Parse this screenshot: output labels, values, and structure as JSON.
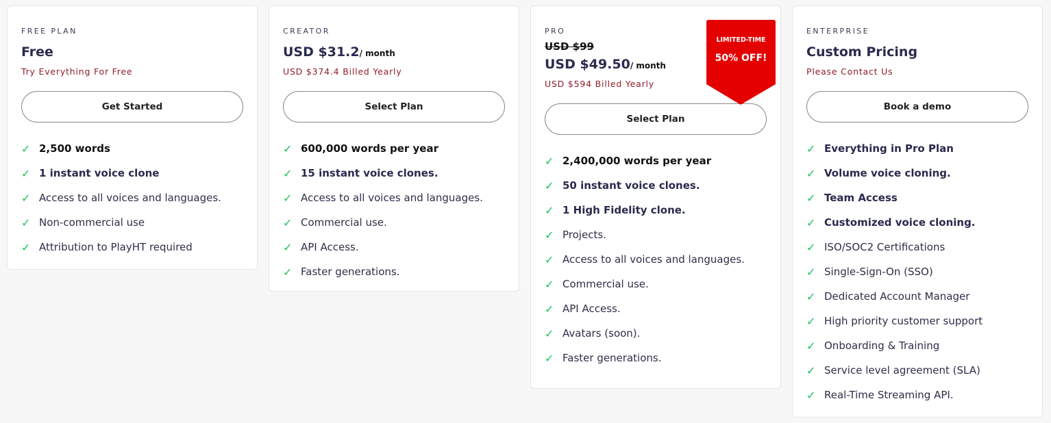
{
  "colors": {
    "accent_check": "#16c45a",
    "subtitle": "#8e1c2b",
    "badge": "#e50000",
    "title": "#2a2a4e"
  },
  "plans": [
    {
      "tier": "FREE PLAN",
      "price": "Free",
      "per": "",
      "old_price": "",
      "subtitle": "Try Everything For Free",
      "button": "Get Started",
      "features": [
        {
          "text": "2,500 words",
          "bold": true,
          "dark": true
        },
        {
          "text": "1 instant voice clone",
          "bold": true
        },
        {
          "text": "Access to all voices and languages."
        },
        {
          "text": "Non-commercial use"
        },
        {
          "text": "Attribution to PlayHT required"
        }
      ]
    },
    {
      "tier": "CREATOR",
      "price": "USD $31.2",
      "per": "/ month",
      "old_price": "",
      "subtitle": "USD $374.4 Billed Yearly",
      "button": "Select Plan",
      "features": [
        {
          "text": "600,000 words per year",
          "bold": true,
          "dark": true
        },
        {
          "text": "15 instant voice clones.",
          "bold": true
        },
        {
          "text": "Access to all voices and languages."
        },
        {
          "text": "Commercial use."
        },
        {
          "text": "API Access."
        },
        {
          "text": "Faster generations."
        }
      ]
    },
    {
      "tier": "PRO",
      "price": "USD $49.50",
      "per": "/ month",
      "old_price": "USD $99",
      "subtitle": "USD $594 Billed Yearly",
      "button": "Select Plan",
      "badge": {
        "line1": "LIMITED-TIME",
        "line2": "50% OFF!"
      },
      "features": [
        {
          "text": "2,400,000 words per year",
          "bold": true,
          "dark": true
        },
        {
          "text": "50 instant voice clones.",
          "bold": true
        },
        {
          "text": "1 High Fidelity clone.",
          "bold": true
        },
        {
          "text": "Projects."
        },
        {
          "text": "Access to all voices and languages."
        },
        {
          "text": "Commercial use."
        },
        {
          "text": "API Access."
        },
        {
          "text": "Avatars (soon)."
        },
        {
          "text": "Faster generations."
        }
      ]
    },
    {
      "tier": "ENTERPRISE",
      "price": "Custom Pricing",
      "per": "",
      "old_price": "",
      "subtitle": "Please Contact Us",
      "button": "Book a demo",
      "features": [
        {
          "text": "Everything in Pro Plan",
          "bold": true
        },
        {
          "text": "Volume voice cloning.",
          "bold": true
        },
        {
          "text": "Team Access",
          "bold": true
        },
        {
          "text": "Customized voice cloning.",
          "bold": true
        },
        {
          "text": "ISO/SOC2 Certifications"
        },
        {
          "text": "Single-Sign-On (SSO)"
        },
        {
          "text": "Dedicated Account Manager"
        },
        {
          "text": "High priority customer support"
        },
        {
          "text": "Onboarding & Training"
        },
        {
          "text": "Service level agreement (SLA)"
        },
        {
          "text": "Real-Time Streaming API."
        }
      ]
    }
  ]
}
